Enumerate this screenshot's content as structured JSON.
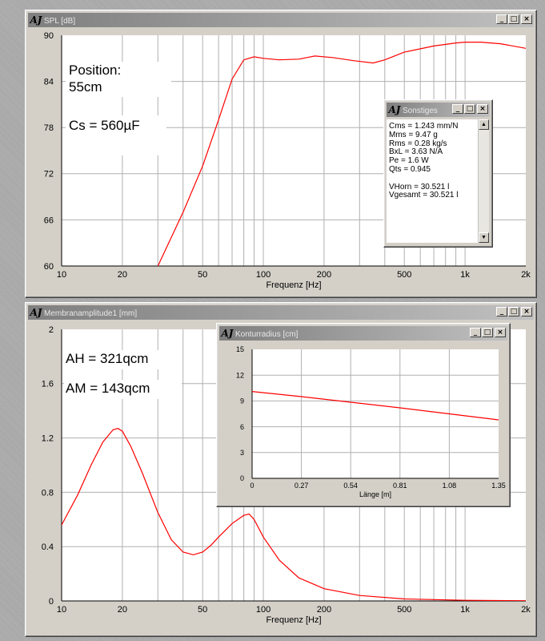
{
  "windows": {
    "spl": {
      "title": "SPL [dB]",
      "btn_min": "_",
      "btn_max": "□",
      "btn_close": "×"
    },
    "membran": {
      "title": "Membranamplitude1 [mm]",
      "btn_min": "_",
      "btn_max": "□",
      "btn_close": "×"
    },
    "kontur": {
      "title": "Konturradius [cm]",
      "btn_min": "_",
      "btn_max": "□",
      "btn_close": "×"
    },
    "sonstiges": {
      "title": "Sonstiges",
      "btn_min": "_",
      "btn_max": "□",
      "btn_close": "×"
    }
  },
  "logo_text": "AJ",
  "annotations": {
    "position_line1": "Position:",
    "position_line2": "55cm",
    "cs": "Cs = 560µF",
    "ah": "AH = 321qcm",
    "am": "AM = 143qcm"
  },
  "sonstiges": {
    "lines": [
      "Cms = 1.243 mm/N",
      "Mms = 9.47 g",
      "Rms = 0.28 kg/s",
      "BxL = 3.63 N/A",
      "Pe = 1.6 W",
      "Qts = 0.945",
      "",
      "VHorn = 30.521 l",
      "Vgesamt = 30.521 l"
    ],
    "scroll_up": "▲",
    "scroll_down": "▼"
  },
  "colors": {
    "curve": "#ff0000",
    "grid": "#b0b0b0",
    "plot_bg": "#ffffff",
    "window_bg": "#d4d0c8"
  },
  "chart_data": [
    {
      "type": "line",
      "xscale": "log",
      "xlim": [
        10,
        2000
      ],
      "ylim": [
        60,
        90
      ],
      "xlabel": "Frequenz [Hz]",
      "ylabel": "",
      "grid": true,
      "xticks": [
        {
          "v": 10,
          "l": "10"
        },
        {
          "v": 20,
          "l": "20"
        },
        {
          "v": 50,
          "l": "50"
        },
        {
          "v": 100,
          "l": "100"
        },
        {
          "v": 200,
          "l": "200"
        },
        {
          "v": 500,
          "l": "500"
        },
        {
          "v": 1000,
          "l": "1k"
        },
        {
          "v": 2000,
          "l": "2k"
        }
      ],
      "yticks": [
        60,
        66,
        72,
        78,
        84,
        90
      ],
      "series": [
        {
          "x": [
            30,
            40,
            50,
            60,
            70,
            80,
            90,
            100,
            120,
            150,
            180,
            220,
            280,
            350,
            400,
            500,
            700,
            900,
            1000,
            1200,
            1500,
            2000
          ],
          "y": [
            60,
            67,
            73,
            79,
            84.3,
            86.8,
            87.2,
            87.0,
            86.8,
            86.9,
            87.3,
            87.1,
            86.7,
            86.4,
            86.8,
            87.8,
            88.6,
            89.0,
            89.1,
            89.1,
            88.9,
            88.3
          ]
        }
      ]
    },
    {
      "type": "line",
      "xscale": "log",
      "xlim": [
        10,
        2000
      ],
      "ylim": [
        0,
        2
      ],
      "xlabel": "Frequenz [Hz]",
      "ylabel": "",
      "grid": true,
      "xticks": [
        {
          "v": 10,
          "l": "10"
        },
        {
          "v": 20,
          "l": "20"
        },
        {
          "v": 50,
          "l": "50"
        },
        {
          "v": 100,
          "l": "100"
        },
        {
          "v": 200,
          "l": "200"
        },
        {
          "v": 500,
          "l": "500"
        },
        {
          "v": 1000,
          "l": "1k"
        },
        {
          "v": 2000,
          "l": "2k"
        }
      ],
      "yticks": [
        {
          "v": 0,
          "l": "0"
        },
        {
          "v": 0.4,
          "l": "0.4"
        },
        {
          "v": 0.8,
          "l": "0.8"
        },
        {
          "v": 1.2,
          "l": "1.2"
        },
        {
          "v": 1.6,
          "l": "1.6"
        },
        {
          "v": 2,
          "l": "2"
        }
      ],
      "series": [
        {
          "x": [
            10,
            12,
            14,
            16,
            18,
            19,
            20,
            22,
            25,
            30,
            35,
            40,
            45,
            50,
            55,
            60,
            70,
            80,
            85,
            90,
            100,
            120,
            150,
            200,
            300,
            500,
            1000,
            2000
          ],
          "y": [
            0.56,
            0.78,
            1.0,
            1.17,
            1.26,
            1.27,
            1.25,
            1.14,
            0.95,
            0.65,
            0.45,
            0.36,
            0.34,
            0.36,
            0.41,
            0.47,
            0.57,
            0.63,
            0.64,
            0.6,
            0.47,
            0.3,
            0.17,
            0.09,
            0.04,
            0.015,
            0.005,
            0.002
          ]
        }
      ]
    },
    {
      "type": "line",
      "xscale": "linear",
      "xlim": [
        0,
        1.35
      ],
      "ylim": [
        0,
        15
      ],
      "xlabel": "Länge [m]",
      "ylabel": "",
      "grid": true,
      "xticks": [
        {
          "v": 0,
          "l": "0"
        },
        {
          "v": 0.27,
          "l": "0.27"
        },
        {
          "v": 0.54,
          "l": "0.54"
        },
        {
          "v": 0.81,
          "l": "0.81"
        },
        {
          "v": 1.08,
          "l": "1.08"
        },
        {
          "v": 1.35,
          "l": "1.35"
        }
      ],
      "yticks": [
        {
          "v": 0,
          "l": "0"
        },
        {
          "v": 3,
          "l": "3"
        },
        {
          "v": 6,
          "l": "6"
        },
        {
          "v": 9,
          "l": "9"
        },
        {
          "v": 12,
          "l": "12"
        },
        {
          "v": 15,
          "l": "15"
        }
      ],
      "series": [
        {
          "x": [
            0,
            0.27,
            0.54,
            0.81,
            1.08,
            1.35
          ],
          "y": [
            10.1,
            9.5,
            8.85,
            8.2,
            7.5,
            6.8
          ]
        }
      ]
    }
  ]
}
